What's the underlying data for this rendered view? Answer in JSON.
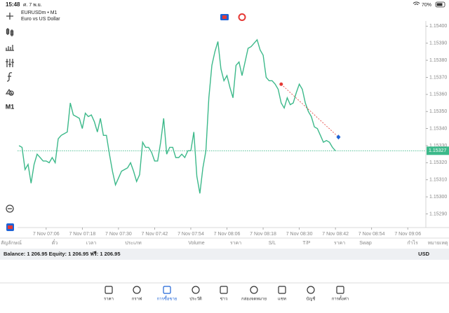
{
  "status_bar": {
    "time": "15:48",
    "date": "ศ. 7 พ.ย.",
    "battery": "70%"
  },
  "toolbar": {
    "timeframe": "M1"
  },
  "chart": {
    "type": "line",
    "symbol": "EURUSDm • M1",
    "description": "Euro vs US Dollar",
    "color": "#3cb98a",
    "values": [
      1.1533,
      1.15329,
      1.15316,
      1.15319,
      1.15308,
      1.15319,
      1.15325,
      1.15323,
      1.15321,
      1.15321,
      1.1532,
      1.15323,
      1.1532,
      1.15334,
      1.15336,
      1.15337,
      1.15338,
      1.15355,
      1.15348,
      1.15347,
      1.15346,
      1.1534,
      1.15349,
      1.15347,
      1.15348,
      1.15344,
      1.15338,
      1.15346,
      1.15336,
      1.15336,
      1.15325,
      1.15315,
      1.15307,
      1.15311,
      1.15315,
      1.15316,
      1.15317,
      1.1532,
      1.15315,
      1.15309,
      1.15313,
      1.15332,
      1.15329,
      1.15329,
      1.15326,
      1.15321,
      1.15321,
      1.15332,
      1.15346,
      1.15325,
      1.15329,
      1.15329,
      1.15323,
      1.15323,
      1.15325,
      1.15323,
      1.15327,
      1.15327,
      1.15338,
      1.15312,
      1.15302,
      1.15317,
      1.15327,
      1.15358,
      1.15377,
      1.15385,
      1.15391,
      1.15375,
      1.15368,
      1.15371,
      1.15364,
      1.15358,
      1.15377,
      1.15379,
      1.15371,
      1.15379,
      1.15387,
      1.15388,
      1.1539,
      1.15392,
      1.15386,
      1.15383,
      1.1537,
      1.15368,
      1.15368,
      1.15366,
      1.15363,
      1.15355,
      1.15352,
      1.15358,
      1.15354,
      1.15355,
      1.15361,
      1.15366,
      1.15363,
      1.15355,
      1.1535,
      1.15347,
      1.15341,
      1.1534,
      1.15336,
      1.15332,
      1.15333,
      1.15332,
      1.15329,
      1.15327
    ],
    "xlim": [
      -0.5,
      135
    ],
    "xticks": [
      {
        "value": 9,
        "label": "7 Nov 07:06"
      },
      {
        "value": 21,
        "label": "7 Nov 07:18"
      },
      {
        "value": 33,
        "label": "7 Nov 07:30"
      },
      {
        "value": 45,
        "label": "7 Nov 07:42"
      },
      {
        "value": 57,
        "label": "7 Nov 07:54"
      },
      {
        "value": 69,
        "label": "7 Nov 08:06"
      },
      {
        "value": 81,
        "label": "7 Nov 08:18"
      },
      {
        "value": 93,
        "label": "7 Nov 08:30"
      },
      {
        "value": 105,
        "label": "7 Nov 08:42"
      },
      {
        "value": 117,
        "label": "7 Nov 08:54"
      },
      {
        "value": 129,
        "label": "7 Nov 09:06"
      }
    ],
    "ylim": [
      1.15282,
      1.15403
    ],
    "yticks": [
      {
        "value": 1.154,
        "label": "1.15400"
      },
      {
        "value": 1.1539,
        "label": "1.15390"
      },
      {
        "value": 1.1538,
        "label": "1.15380"
      },
      {
        "value": 1.1537,
        "label": "1.15370"
      },
      {
        "value": 1.1536,
        "label": "1.15360"
      },
      {
        "value": 1.1535,
        "label": "1.15350"
      },
      {
        "value": 1.1534,
        "label": "1.15340"
      },
      {
        "value": 1.1533,
        "label": "1.15330"
      },
      {
        "value": 1.1532,
        "label": "1.15320"
      },
      {
        "value": 1.1531,
        "label": "1.15310"
      },
      {
        "value": 1.153,
        "label": "1.15300"
      },
      {
        "value": 1.1529,
        "label": "1.15290"
      }
    ],
    "current_price": {
      "value": 1.15327,
      "label": "1.15327"
    },
    "trade": {
      "color": "#e53935",
      "open_x": 87,
      "open_price": 1.15366,
      "close_x": 106,
      "close_price": 1.15335
    }
  },
  "table": {
    "columns": [
      "สัญลักษณ์",
      "ตั๋ว",
      "เวลา",
      "ประเภท",
      "Volume",
      "ราคา",
      "S/L",
      "T/P",
      "ราคา",
      "Swap",
      "กำไร",
      "หมายเหตุ"
    ],
    "balance": "Balance: 1 206.95 Equity: 1 206.95 ฟรี: 1 206.95",
    "currency": "USD"
  },
  "tabs": [
    "ราคา",
    "กราฟ",
    "การซื้อขาย",
    "ประวัติ",
    "ข่าว",
    "กล่องจดหมาย",
    "แชท",
    "บัญชี",
    "การตั้งค่า"
  ],
  "active_tab": 2
}
